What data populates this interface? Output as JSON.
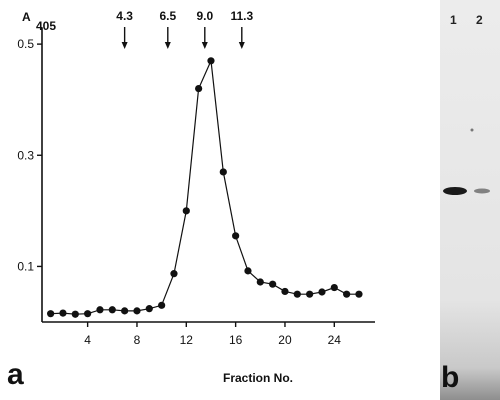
{
  "chart_data": {
    "type": "line",
    "panel_label": "a",
    "ylabel": "A",
    "ylabel_sub": "405",
    "xlabel": "Fraction No.",
    "xlim": [
      0.3,
      27.3
    ],
    "ylim": [
      0.0,
      0.52
    ],
    "x_ticks": [
      4,
      8,
      12,
      16,
      20,
      24
    ],
    "y_ticks": [
      {
        "value": 0.1,
        "label": "0.1"
      },
      {
        "value": 0.3,
        "label": "0.3"
      },
      {
        "value": 0.5,
        "label": "0.5"
      }
    ],
    "markers": [
      {
        "label": "4.3",
        "x": 7.0
      },
      {
        "label": "6.5",
        "x": 10.5
      },
      {
        "label": "9.0",
        "x": 13.5
      },
      {
        "label": "11.3",
        "x": 16.5
      }
    ],
    "series": [
      {
        "x": [
          1,
          2,
          3,
          4,
          5,
          6,
          7,
          8,
          9,
          10,
          11,
          12,
          13,
          14,
          15,
          16,
          17,
          18,
          19,
          20,
          21,
          22,
          23,
          24,
          25,
          26
        ],
        "y": [
          0.015,
          0.016,
          0.014,
          0.015,
          0.022,
          0.022,
          0.02,
          0.02,
          0.024,
          0.03,
          0.087,
          0.2,
          0.42,
          0.47,
          0.27,
          0.155,
          0.092,
          0.072,
          0.068,
          0.055,
          0.05,
          0.05,
          0.054,
          0.062,
          0.05,
          0.05
        ]
      }
    ]
  },
  "gel_panel": {
    "panel_label": "b",
    "lanes": [
      {
        "label": "1",
        "band_intensity": 1.0
      },
      {
        "label": "2",
        "band_intensity": 0.35
      }
    ]
  }
}
